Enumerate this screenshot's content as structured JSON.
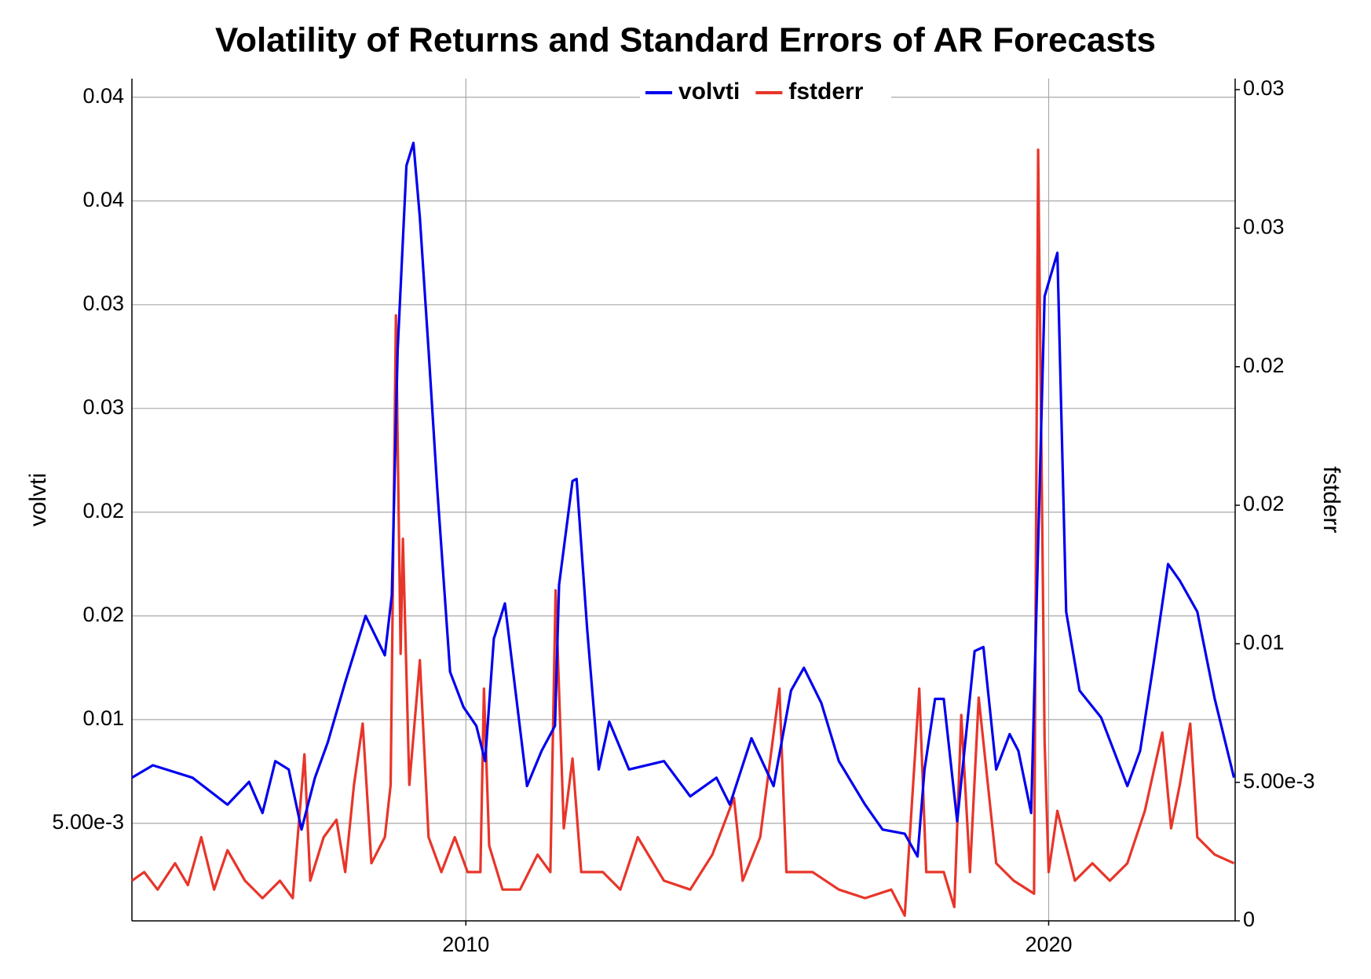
{
  "chart_data": {
    "type": "line",
    "title": "Volatility of Returns and Standard Errors of AR Forecasts",
    "y_label": "volvti",
    "y2_label": "fstderr",
    "series": [
      {
        "name": "volvti",
        "color": "#0000ee",
        "x": [
          2004.27,
          2004.63,
          2005.31,
          2005.91,
          2006.28,
          2006.51,
          2006.73,
          2006.96,
          2007.18,
          2007.41,
          2007.63,
          2007.93,
          2008.28,
          2008.61,
          2008.73,
          2008.83,
          2008.98,
          2009.1,
          2009.21,
          2009.36,
          2009.51,
          2009.73,
          2009.96,
          2010.18,
          2010.33,
          2010.48,
          2010.67,
          2010.85,
          2011.05,
          2011.3,
          2011.53,
          2011.6,
          2011.83,
          2011.9,
          2012.08,
          2012.28,
          2012.46,
          2012.8,
          2013.4,
          2013.85,
          2014.3,
          2014.53,
          2014.9,
          2015.28,
          2015.58,
          2015.8,
          2016.1,
          2016.4,
          2016.85,
          2017.15,
          2017.53,
          2017.75,
          2017.87,
          2018.05,
          2018.2,
          2018.43,
          2018.73,
          2018.88,
          2019.1,
          2019.33,
          2019.48,
          2019.7,
          2019.93,
          2020.15,
          2020.3,
          2020.53,
          2020.9,
          2021.35,
          2021.57,
          2021.8,
          2022.05,
          2022.25,
          2022.55,
          2022.85,
          2023.18
        ],
        "values": [
          0.0072,
          0.0078,
          0.0072,
          0.0059,
          0.007,
          0.0055,
          0.008,
          0.0076,
          0.0047,
          0.0072,
          0.0089,
          0.0118,
          0.015,
          0.0131,
          0.016,
          0.0278,
          0.0367,
          0.0378,
          0.0342,
          0.0278,
          0.0211,
          0.0123,
          0.0106,
          0.0097,
          0.008,
          0.0139,
          0.0156,
          0.0114,
          0.0068,
          0.0085,
          0.0097,
          0.0165,
          0.0215,
          0.0216,
          0.0144,
          0.0076,
          0.0099,
          0.0076,
          0.008,
          0.0063,
          0.0072,
          0.0059,
          0.0091,
          0.0068,
          0.0114,
          0.0125,
          0.0108,
          0.008,
          0.0059,
          0.0047,
          0.0045,
          0.0034,
          0.0076,
          0.011,
          0.011,
          0.0051,
          0.0133,
          0.0135,
          0.0076,
          0.0093,
          0.0085,
          0.0055,
          0.0304,
          0.0325,
          0.0152,
          0.0114,
          0.0101,
          0.0068,
          0.0085,
          0.0127,
          0.0175,
          0.0167,
          0.0152,
          0.011,
          0.0072
        ]
      },
      {
        "name": "fstderr",
        "color": "#e8352a",
        "axis": "y2",
        "x": [
          2004.27,
          2004.48,
          2004.71,
          2005.01,
          2005.23,
          2005.46,
          2005.68,
          2005.91,
          2006.21,
          2006.51,
          2006.81,
          2007.03,
          2007.23,
          2007.33,
          2007.56,
          2007.78,
          2007.93,
          2008.08,
          2008.23,
          2008.38,
          2008.61,
          2008.71,
          2008.8,
          2008.88,
          2008.92,
          2009.03,
          2009.21,
          2009.36,
          2009.58,
          2009.81,
          2010.03,
          2010.25,
          2010.31,
          2010.4,
          2010.63,
          2010.93,
          2011.23,
          2011.45,
          2011.54,
          2011.68,
          2011.83,
          2011.98,
          2012.35,
          2012.65,
          2012.95,
          2013.4,
          2013.85,
          2014.23,
          2014.6,
          2014.75,
          2015.05,
          2015.38,
          2015.5,
          2015.95,
          2016.4,
          2016.85,
          2017.3,
          2017.53,
          2017.78,
          2017.9,
          2018.2,
          2018.38,
          2018.5,
          2018.65,
          2018.8,
          2019.1,
          2019.4,
          2019.75,
          2019.82,
          2019.93,
          2020.0,
          2020.15,
          2020.45,
          2020.75,
          2021.05,
          2021.35,
          2021.65,
          2021.95,
          2022.1,
          2022.25,
          2022.43,
          2022.55,
          2022.85,
          2023.18
        ],
        "values": [
          0.00145,
          0.00176,
          0.00113,
          0.00208,
          0.00129,
          0.00302,
          0.00113,
          0.00255,
          0.00145,
          0.00082,
          0.00145,
          0.00082,
          0.00601,
          0.00145,
          0.00302,
          0.00365,
          0.00176,
          0.00491,
          0.00712,
          0.00208,
          0.00302,
          0.00491,
          0.02185,
          0.00964,
          0.01379,
          0.00491,
          0.00941,
          0.00302,
          0.00176,
          0.00302,
          0.00176,
          0.00176,
          0.00838,
          0.00271,
          0.00113,
          0.00113,
          0.00239,
          0.00176,
          0.01193,
          0.00334,
          0.00586,
          0.00176,
          0.00176,
          0.00113,
          0.00302,
          0.00145,
          0.00113,
          0.00239,
          0.00444,
          0.00145,
          0.00302,
          0.00838,
          0.00176,
          0.00176,
          0.00113,
          0.00082,
          0.00113,
          0.00019,
          0.00838,
          0.00176,
          0.00176,
          0.0005,
          0.00743,
          0.00176,
          0.00806,
          0.00208,
          0.00145,
          0.00098,
          0.02783,
          0.00649,
          0.00176,
          0.00397,
          0.00145,
          0.00208,
          0.00145,
          0.00208,
          0.00397,
          0.0068,
          0.00334,
          0.00491,
          0.00712,
          0.00302,
          0.00239,
          0.00208
        ]
      }
    ],
    "xlim": [
      2004.27,
      2023.2
    ],
    "xticks": [
      2010,
      2020
    ],
    "ylim": [
      0.0003,
      0.0409
    ],
    "yticks": [
      {
        "value": 0.005,
        "label": "5.00e-3"
      },
      0.01,
      {
        "value": 0.015,
        "label": "0.02"
      },
      0.02,
      {
        "value": 0.025,
        "label": "0.03"
      },
      0.03,
      {
        "value": 0.035,
        "label": "0.04"
      },
      0.04
    ],
    "y2lim": [
      0,
      0.0304
    ],
    "y2ticks": [
      0,
      {
        "value": 0.005,
        "label": "5.00e-3"
      },
      0.01,
      {
        "value": 0.015,
        "label": "0.02"
      },
      0.02,
      {
        "value": 0.025,
        "label": "0.03"
      },
      0.03
    ],
    "grid": true,
    "legend": "top"
  }
}
